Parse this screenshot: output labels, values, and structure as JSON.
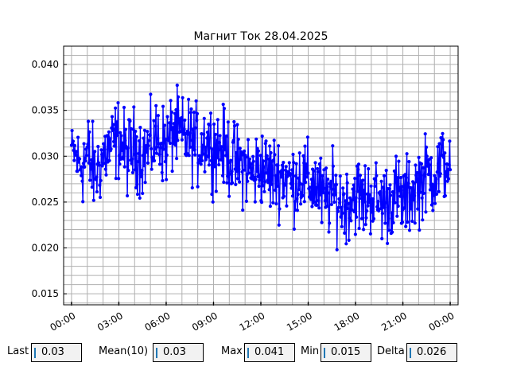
{
  "chart_data": {
    "type": "line",
    "title": "Магнит Ток 28.04.2025",
    "xlabel": "",
    "ylabel": "",
    "x_ticks": [
      "00:00",
      "03:00",
      "06:00",
      "09:00",
      "12:00",
      "15:00",
      "18:00",
      "21:00",
      "00:00"
    ],
    "y_ticks": [
      "0.015",
      "0.020",
      "0.025",
      "0.030",
      "0.035",
      "0.040"
    ],
    "xlim_hours": [
      -0.5,
      24.5
    ],
    "ylim": [
      0.0138,
      0.042
    ],
    "grid": true,
    "line_color": "#0000ff",
    "grid_color": "#b0b0b0",
    "series": [
      {
        "x_hours": [
          0.0,
          0.5,
          1.0,
          1.5,
          2.0,
          2.5,
          3.0,
          3.5,
          4.0,
          4.5,
          5.0,
          5.5,
          6.0,
          6.5,
          7.0,
          7.5,
          8.0,
          8.5,
          9.0,
          9.5,
          10.0,
          10.5,
          11.0,
          11.5,
          12.0,
          12.5,
          13.0,
          13.5,
          14.0,
          14.5,
          15.0,
          15.5,
          16.0,
          16.5,
          17.0,
          17.5,
          18.0,
          18.5,
          19.0,
          19.5,
          20.0,
          20.5,
          21.0,
          21.5,
          22.0,
          22.5,
          23.0,
          23.5,
          24.0
        ],
        "values": [
          0.031,
          0.029,
          0.03,
          0.028,
          0.03,
          0.031,
          0.032,
          0.03,
          0.031,
          0.03,
          0.031,
          0.032,
          0.031,
          0.033,
          0.032,
          0.032,
          0.031,
          0.032,
          0.031,
          0.031,
          0.03,
          0.029,
          0.029,
          0.028,
          0.029,
          0.028,
          0.028,
          0.028,
          0.027,
          0.028,
          0.027,
          0.027,
          0.025,
          0.026,
          0.025,
          0.025,
          0.026,
          0.025,
          0.026,
          0.025,
          0.025,
          0.026,
          0.025,
          0.026,
          0.027,
          0.028,
          0.028,
          0.029,
          0.029
        ],
        "noise": [
          0.002,
          0.004,
          0.005,
          0.004,
          0.004,
          0.004,
          0.004,
          0.004,
          0.004,
          0.004,
          0.004,
          0.004,
          0.004,
          0.004,
          0.004,
          0.004,
          0.004,
          0.004,
          0.004,
          0.004,
          0.004,
          0.004,
          0.004,
          0.004,
          0.004,
          0.004,
          0.004,
          0.004,
          0.004,
          0.004,
          0.004,
          0.004,
          0.004,
          0.004,
          0.004,
          0.004,
          0.004,
          0.004,
          0.004,
          0.004,
          0.004,
          0.004,
          0.004,
          0.004,
          0.004,
          0.004,
          0.004,
          0.004,
          0.003
        ],
        "n_points": 700,
        "x_end_hours": 24.0
      }
    ]
  },
  "stats": [
    {
      "label": "Last",
      "value": "0.03"
    },
    {
      "label": "Mean(10)",
      "value": "0.03"
    },
    {
      "label": "Max",
      "value": "0.041"
    },
    {
      "label": "Min",
      "value": "0.015"
    },
    {
      "label": "Delta",
      "value": "0.026"
    }
  ]
}
